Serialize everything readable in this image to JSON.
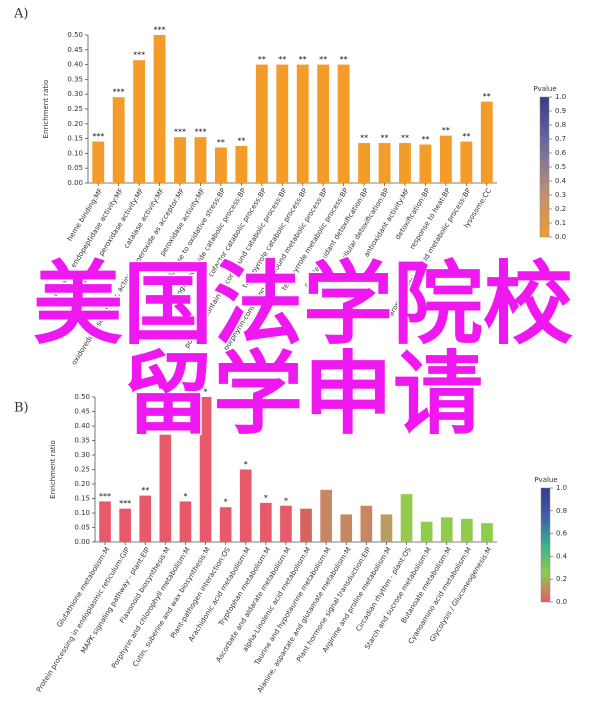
{
  "chart_data": [
    {
      "type": "bar",
      "panel": "A)",
      "ylabel": "Enrichment ratio",
      "categories": [
        "heme binding:MF",
        "serine-type endopeptidase activity:MF",
        "L-ascorbate peroxidase activity:MF",
        "catalase activity:MF",
        "oxidoreductase activity, acting on peroxide as acceptor:MF",
        "peroxidase activity:MF",
        "response to oxidative stress:BP",
        "hydrogen peroxide catabolic process:BP",
        "cofactor catabolic process:BP",
        "porphyrin-containing compound catabolic process:BP",
        "tetrapyrrole catabolic process:BP",
        "porphyrin-containing compound metabolic process:BP",
        "tetrapyrrole metabolic process:BP",
        "cellular oxidant detoxification:BP",
        "cellular detoxification:BP",
        "antioxidant activity:MF",
        "detoxification:BP",
        "response to heat:BP",
        "aromatic amino acid metabolic process:BP",
        "lysosome:CC"
      ],
      "values": [
        0.14,
        0.29,
        0.415,
        0.5,
        0.155,
        0.155,
        0.12,
        0.125,
        0.4,
        0.4,
        0.4,
        0.4,
        0.4,
        0.135,
        0.135,
        0.135,
        0.13,
        0.16,
        0.14,
        0.275
      ],
      "significance": [
        "***",
        "***",
        "***",
        "***",
        "***",
        "***",
        "**",
        "**",
        "**",
        "**",
        "**",
        "**",
        "**",
        "**",
        "**",
        "**",
        "**",
        "**",
        "**",
        "**"
      ],
      "color": "#f39c2a",
      "ylim": [
        0,
        0.5
      ],
      "yticks": [
        {
          "value": 0,
          "label": "0.00"
        },
        {
          "value": 0.05,
          "label": "0.05"
        },
        {
          "value": 0.1,
          "label": "0.10"
        },
        {
          "value": 0.15,
          "label": "0.15"
        },
        {
          "value": 0.2,
          "label": "0.20"
        },
        {
          "value": 0.25,
          "label": "0.25"
        },
        {
          "value": 0.3,
          "label": "0.30"
        },
        {
          "value": 0.35,
          "label": "0.35"
        },
        {
          "value": 0.4,
          "label": "0.40"
        },
        {
          "value": 0.45,
          "label": "0.45"
        },
        {
          "value": 0.5,
          "label": "0.50"
        }
      ],
      "colorbar": {
        "title": "Pvalue",
        "lim": [
          0,
          1
        ],
        "colors": [
          "#f39c2a",
          "#b98f7a",
          "#6c6aa0",
          "#3a3a8c"
        ],
        "ticks": [
          {
            "value": 0,
            "label": "0.0"
          },
          {
            "value": 0.1,
            "label": "0.1"
          },
          {
            "value": 0.2,
            "label": "0.2"
          },
          {
            "value": 0.3,
            "label": "0.3"
          },
          {
            "value": 0.4,
            "label": "0.4"
          },
          {
            "value": 0.5,
            "label": "0.5"
          },
          {
            "value": 0.6,
            "label": "0.6"
          },
          {
            "value": 0.7,
            "label": "0.7"
          },
          {
            "value": 0.8,
            "label": "0.8"
          },
          {
            "value": 0.9,
            "label": "0.9"
          },
          {
            "value": 1,
            "label": "1.0"
          }
        ]
      }
    },
    {
      "type": "bar",
      "panel": "B)",
      "ylabel": "Enrichment ratio",
      "categories": [
        "Glutathione metabolism:M",
        "Protein processing in endoplasmic reticulum:GIP",
        "MAPK signaling pathway - plant:EIP",
        "Flavonoid biosynthesis:M",
        "Porphyrin and chlorophyll metabolism:M",
        "Cutin, suberine and wax biosynthesis:M",
        "Plant-pathogen interaction:OS",
        "Arachidonic acid metabolism:M",
        "Tryptophan metabolism:M",
        "Ascorbate and aldarate metabolism:M",
        "alpha-Linolenic acid metabolism:M",
        "Taurine and hypotaurine metabolism:M",
        "Alanine, aspartate and glutamate metabolism:M",
        "Plant hormone signal transduction:EIP",
        "Arginine and proline metabolism:M",
        "Circadian rhythm - plant:OS",
        "Starch and sucrose metabolism:M",
        "Butanoate metabolism:M",
        "Cyanoamino acid metabolism:M",
        "Glycolysis / Gluconeogenesis:M"
      ],
      "values": [
        0.14,
        0.115,
        0.16,
        0.37,
        0.14,
        0.5,
        0.12,
        0.25,
        0.135,
        0.125,
        0.115,
        0.18,
        0.095,
        0.125,
        0.095,
        0.165,
        0.07,
        0.085,
        0.08,
        0.065
      ],
      "significance": [
        "***",
        "***",
        "**",
        null,
        "*",
        "*",
        "*",
        "*",
        "*",
        "*",
        null,
        null,
        null,
        null,
        null,
        null,
        null,
        null,
        null,
        null
      ],
      "colors": [
        "#e8596a",
        "#e8596a",
        "#e8596a",
        "#e8596a",
        "#e8596a",
        "#e8596a",
        "#e8596a",
        "#e8596a",
        "#e8596a",
        "#e8596a",
        "#d5635e",
        "#c98664",
        "#c48862",
        "#c88662",
        "#b99c62",
        "#97c94e",
        "#8fcc4a",
        "#8fcc4a",
        "#8fcc4a",
        "#8fcc4a"
      ],
      "ylim": [
        0,
        0.5
      ],
      "yticks": [
        {
          "value": 0,
          "label": "0.00"
        },
        {
          "value": 0.05,
          "label": "0.05"
        },
        {
          "value": 0.1,
          "label": "0.10"
        },
        {
          "value": 0.15,
          "label": "0.15"
        },
        {
          "value": 0.2,
          "label": "0.20"
        },
        {
          "value": 0.25,
          "label": "0.25"
        },
        {
          "value": 0.3,
          "label": "0.30"
        },
        {
          "value": 0.35,
          "label": "0.35"
        },
        {
          "value": 0.4,
          "label": "0.40"
        },
        {
          "value": 0.45,
          "label": "0.45"
        },
        {
          "value": 0.5,
          "label": "0.50"
        }
      ],
      "colorbar": {
        "title": "Pvalue",
        "lim": [
          0,
          1
        ],
        "colors": [
          "#e8596a",
          "#8fcc4a",
          "#3bb08f",
          "#3f5ea8",
          "#3a3a8c"
        ],
        "ticks": [
          {
            "value": 0,
            "label": "0.0"
          },
          {
            "value": 0.2,
            "label": "0.2"
          },
          {
            "value": 0.4,
            "label": "0.4"
          },
          {
            "value": 0.6,
            "label": "0.6"
          },
          {
            "value": 0.8,
            "label": "0.8"
          },
          {
            "value": 1,
            "label": "1.0"
          }
        ]
      }
    }
  ],
  "overlay": {
    "lines": [
      "美国法学院校",
      "留学申请"
    ]
  }
}
